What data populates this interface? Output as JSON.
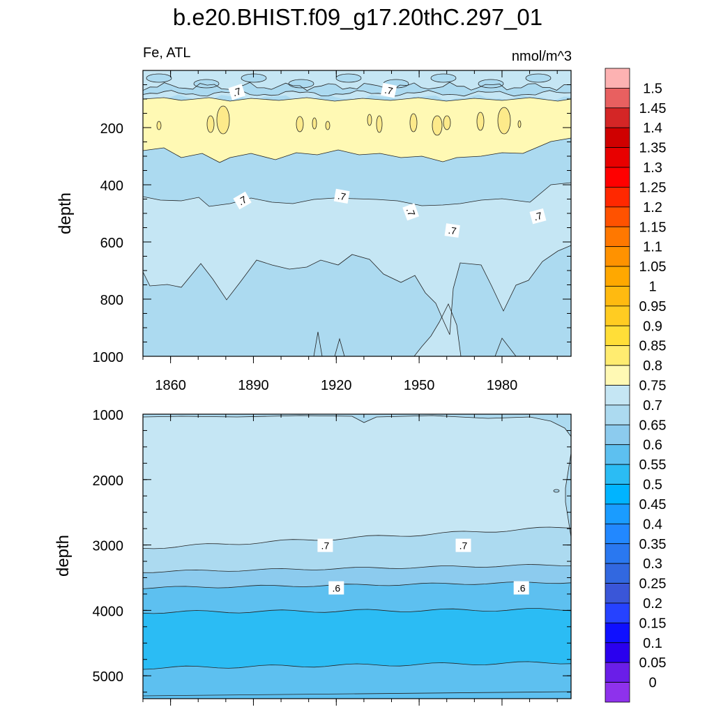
{
  "title": "b.e20.BHIST.f09_g17.20thC.297_01",
  "subtitle_left": "Fe, ATL",
  "subtitle_right": "nmol/m^3",
  "colors": {
    "fill_070_075": "#c5e6f4",
    "fill_065_070": "#acdaf0",
    "fill_060_065": "#8ccbee",
    "fill_055_060": "#5dc0f0",
    "fill_050_055": "#2bbcf4",
    "fill_075_080": "#fff9b4"
  },
  "chart_data": [
    {
      "type": "contour",
      "panel": "upper",
      "ylabel": "depth",
      "ylim": [
        1000,
        0
      ],
      "xlim": [
        1850,
        2005
      ],
      "xticks": [
        "1860",
        "1890",
        "1920",
        "1950",
        "1980"
      ],
      "yticks": [
        "200",
        "400",
        "600",
        "800",
        "1000"
      ],
      "contour_labels": [
        {
          "text": ".7",
          "x": 1884,
          "depth": 75
        },
        {
          "text": ".7",
          "x": 1939,
          "depth": 70
        },
        {
          "text": ".7",
          "x": 1886,
          "depth": 455
        },
        {
          "text": ".7",
          "x": 1922,
          "depth": 440
        },
        {
          "text": ".7",
          "x": 1947,
          "depth": 495
        },
        {
          "text": ".7",
          "x": 1962,
          "depth": 560
        },
        {
          "text": ".7",
          "x": 1993,
          "depth": 510
        }
      ]
    },
    {
      "type": "contour",
      "panel": "lower",
      "ylabel": "depth",
      "ylim": [
        5350,
        1000
      ],
      "xlim": [
        1850,
        2005
      ],
      "yticks": [
        "1000",
        "2000",
        "3000",
        "4000",
        "5000"
      ],
      "contour_labels": [
        {
          "text": ".7",
          "x": 1916,
          "depth": 3000
        },
        {
          "text": ".7",
          "x": 1966,
          "depth": 3000
        },
        {
          "text": ".6",
          "x": 1920,
          "depth": 3650
        },
        {
          "text": ".6",
          "x": 1987,
          "depth": 3650
        }
      ]
    }
  ],
  "colorbar": {
    "labels": [
      "1.5",
      "1.45",
      "1.4",
      "1.35",
      "1.3",
      "1.25",
      "1.2",
      "1.15",
      "1.1",
      "1.05",
      "1",
      "0.95",
      "0.9",
      "0.85",
      "0.8",
      "0.75",
      "0.7",
      "0.65",
      "0.6",
      "0.55",
      "0.5",
      "0.45",
      "0.4",
      "0.35",
      "0.3",
      "0.25",
      "0.2",
      "0.15",
      "0.1",
      "0.05",
      "0"
    ],
    "colors": [
      "#fdb2b2",
      "#e86060",
      "#d42626",
      "#cf0000",
      "#e80000",
      "#ff0000",
      "#ff2800",
      "#ff5200",
      "#ff7800",
      "#ff9200",
      "#ffa800",
      "#ffba10",
      "#ffcc22",
      "#ffde38",
      "#ffec70",
      "#fff9b4",
      "#c5e6f4",
      "#acdaf0",
      "#8ccbee",
      "#5dc0f0",
      "#2bbcf4",
      "#00b4ff",
      "#1a9cff",
      "#2288ff",
      "#2a78f0",
      "#3268e0",
      "#3a56d8",
      "#2642ff",
      "#0f10ff",
      "#2a00ee",
      "#6a1ee8",
      "#8e32ec"
    ]
  }
}
